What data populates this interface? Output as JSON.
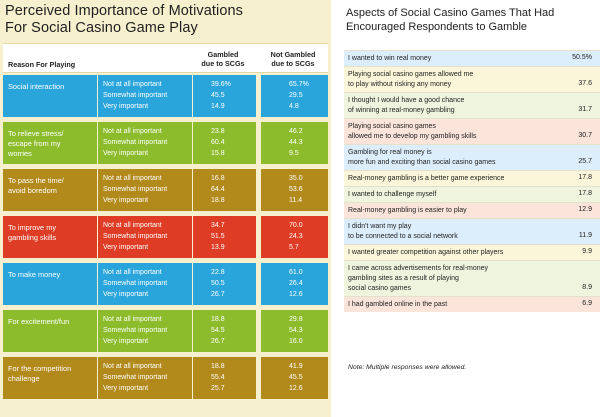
{
  "left": {
    "title_line1": "Perceived Importance of Motivations",
    "title_line2": "For Social Casino Game Play",
    "header": {
      "reason": "Reason For Playing",
      "gambled_line1": "Gambled",
      "gambled_line2": "due to SCGs",
      "not_gambled_line1": "Not Gambled",
      "not_gambled_line2": "due to SCGs"
    },
    "levels": [
      "Not at all important",
      "Somewhat important",
      "Very important"
    ],
    "groups": [
      {
        "reason_lines": [
          "Social interaction"
        ],
        "color": "#2aa5dc",
        "gambled": [
          "39.6%",
          "45.5",
          "14.9"
        ],
        "not_gambled": [
          "65.7%",
          "29.5",
          "4.8"
        ]
      },
      {
        "reason_lines": [
          "To relieve stress/",
          "escape from my",
          "worries"
        ],
        "color": "#8cbc2c",
        "gambled": [
          "23.8",
          "60.4",
          "15.8"
        ],
        "not_gambled": [
          "46.2",
          "44.3",
          "9.5"
        ]
      },
      {
        "reason_lines": [
          "To pass the time/",
          "avoid boredom"
        ],
        "color": "#b18a1b",
        "gambled": [
          "16.8",
          "64.4",
          "18.8"
        ],
        "not_gambled": [
          "35.0",
          "53.6",
          "11.4"
        ]
      },
      {
        "reason_lines": [
          "To improve my",
          "gambling skills"
        ],
        "color": "#de3c25",
        "gambled": [
          "34.7",
          "51.5",
          "13.9"
        ],
        "not_gambled": [
          "70.0",
          "24.3",
          "5.7"
        ]
      },
      {
        "reason_lines": [
          "To make money"
        ],
        "color": "#2aa5dc",
        "gambled": [
          "22.8",
          "50.5",
          "26.7"
        ],
        "not_gambled": [
          "61.0",
          "26.4",
          "12.6"
        ]
      },
      {
        "reason_lines": [
          "For excitement/fun"
        ],
        "color": "#8cbc2c",
        "gambled": [
          "18.8",
          "54.5",
          "26.7"
        ],
        "not_gambled": [
          "29.8",
          "54.3",
          "16.0"
        ]
      },
      {
        "reason_lines": [
          "For the competition",
          "challenge"
        ],
        "color": "#b18a1b",
        "gambled": [
          "18.8",
          "55.4",
          "25.7"
        ],
        "not_gambled": [
          "41.9",
          "45.5",
          "12.6"
        ]
      }
    ]
  },
  "right": {
    "title_line1": "Aspects of Social Casino Games That Had",
    "title_line2": "Encouraged Respondents to Gamble",
    "rows": [
      {
        "lines": [
          "I wanted to win real money"
        ],
        "value": "50.5%",
        "bg": "#dceefb"
      },
      {
        "lines": [
          "Playing social casino games allowed me",
          "to play without risking any money"
        ],
        "value": "37.6",
        "bg": "#fbf6da"
      },
      {
        "lines": [
          "I thought I would have a good chance",
          "of winning at real-money gambling"
        ],
        "value": "31.7",
        "bg": "#eef4de"
      },
      {
        "lines": [
          "Playing social casino games",
          "allowed me to develop my gambling skills"
        ],
        "value": "30.7",
        "bg": "#fbe4da"
      },
      {
        "lines": [
          "Gambling for real money is",
          "more fun and exciting than social casino games"
        ],
        "value": "25.7",
        "bg": "#dceefb"
      },
      {
        "lines": [
          "Real-money gambling is a better game experience"
        ],
        "value": "17.8",
        "bg": "#fbf6da"
      },
      {
        "lines": [
          "I wanted to challenge myself"
        ],
        "value": "17.8",
        "bg": "#eef4de"
      },
      {
        "lines": [
          "Real-money gambling is easier to play"
        ],
        "value": "12.9",
        "bg": "#fbe4da"
      },
      {
        "lines": [
          "I didn't want my play",
          "to be connected to a social network"
        ],
        "value": "11.9",
        "bg": "#dceefb"
      },
      {
        "lines": [
          "I wanted greater competition against other players"
        ],
        "value": "9.9",
        "bg": "#fbf6da"
      },
      {
        "lines": [
          "I came across advertisements for real-money",
          "gambling sites as a result of playing",
          "social casino games"
        ],
        "value": "8.9",
        "bg": "#eef4de"
      },
      {
        "lines": [
          "I had gambled online in the past"
        ],
        "value": "6.9",
        "bg": "#fbe4da"
      }
    ],
    "note": "Note: Multiple responses were allowed."
  }
}
